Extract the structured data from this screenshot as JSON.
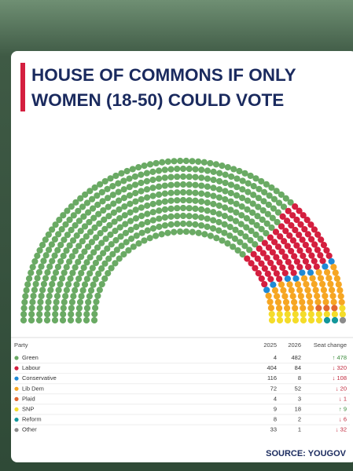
{
  "chart_data": {
    "type": "parliament",
    "title_lines": [
      "HOUSE OF COMMONS IF ONLY",
      "WOMEN (18-50) COULD VOTE"
    ],
    "column_header": "Party",
    "categories": [
      "Green",
      "Labour",
      "Conservative",
      "Lib Dem",
      "Plaid",
      "SNP",
      "Reform",
      "Other"
    ],
    "colors": [
      "#6aaa64",
      "#d41f3f",
      "#1f8ad6",
      "#f6a623",
      "#e2672e",
      "#f4dc2a",
      "#13979b",
      "#8c8c8c"
    ],
    "series": [
      {
        "name": "2025",
        "values": [
          4,
          404,
          116,
          72,
          4,
          9,
          8,
          33
        ]
      },
      {
        "name": "2026",
        "values": [
          482,
          84,
          8,
          52,
          3,
          18,
          2,
          1
        ]
      }
    ],
    "change": {
      "name": "Seat change",
      "values": [
        478,
        -320,
        -108,
        -20,
        -1,
        9,
        -6,
        -32
      ],
      "value_labels": [
        "↑ 478",
        "↓ 320",
        "↓ 108",
        "↓ 20",
        "↓ 1",
        "↑ 9",
        "↓ 6",
        "↓ 32"
      ]
    },
    "source": "SOURCE: YOUGOV"
  }
}
